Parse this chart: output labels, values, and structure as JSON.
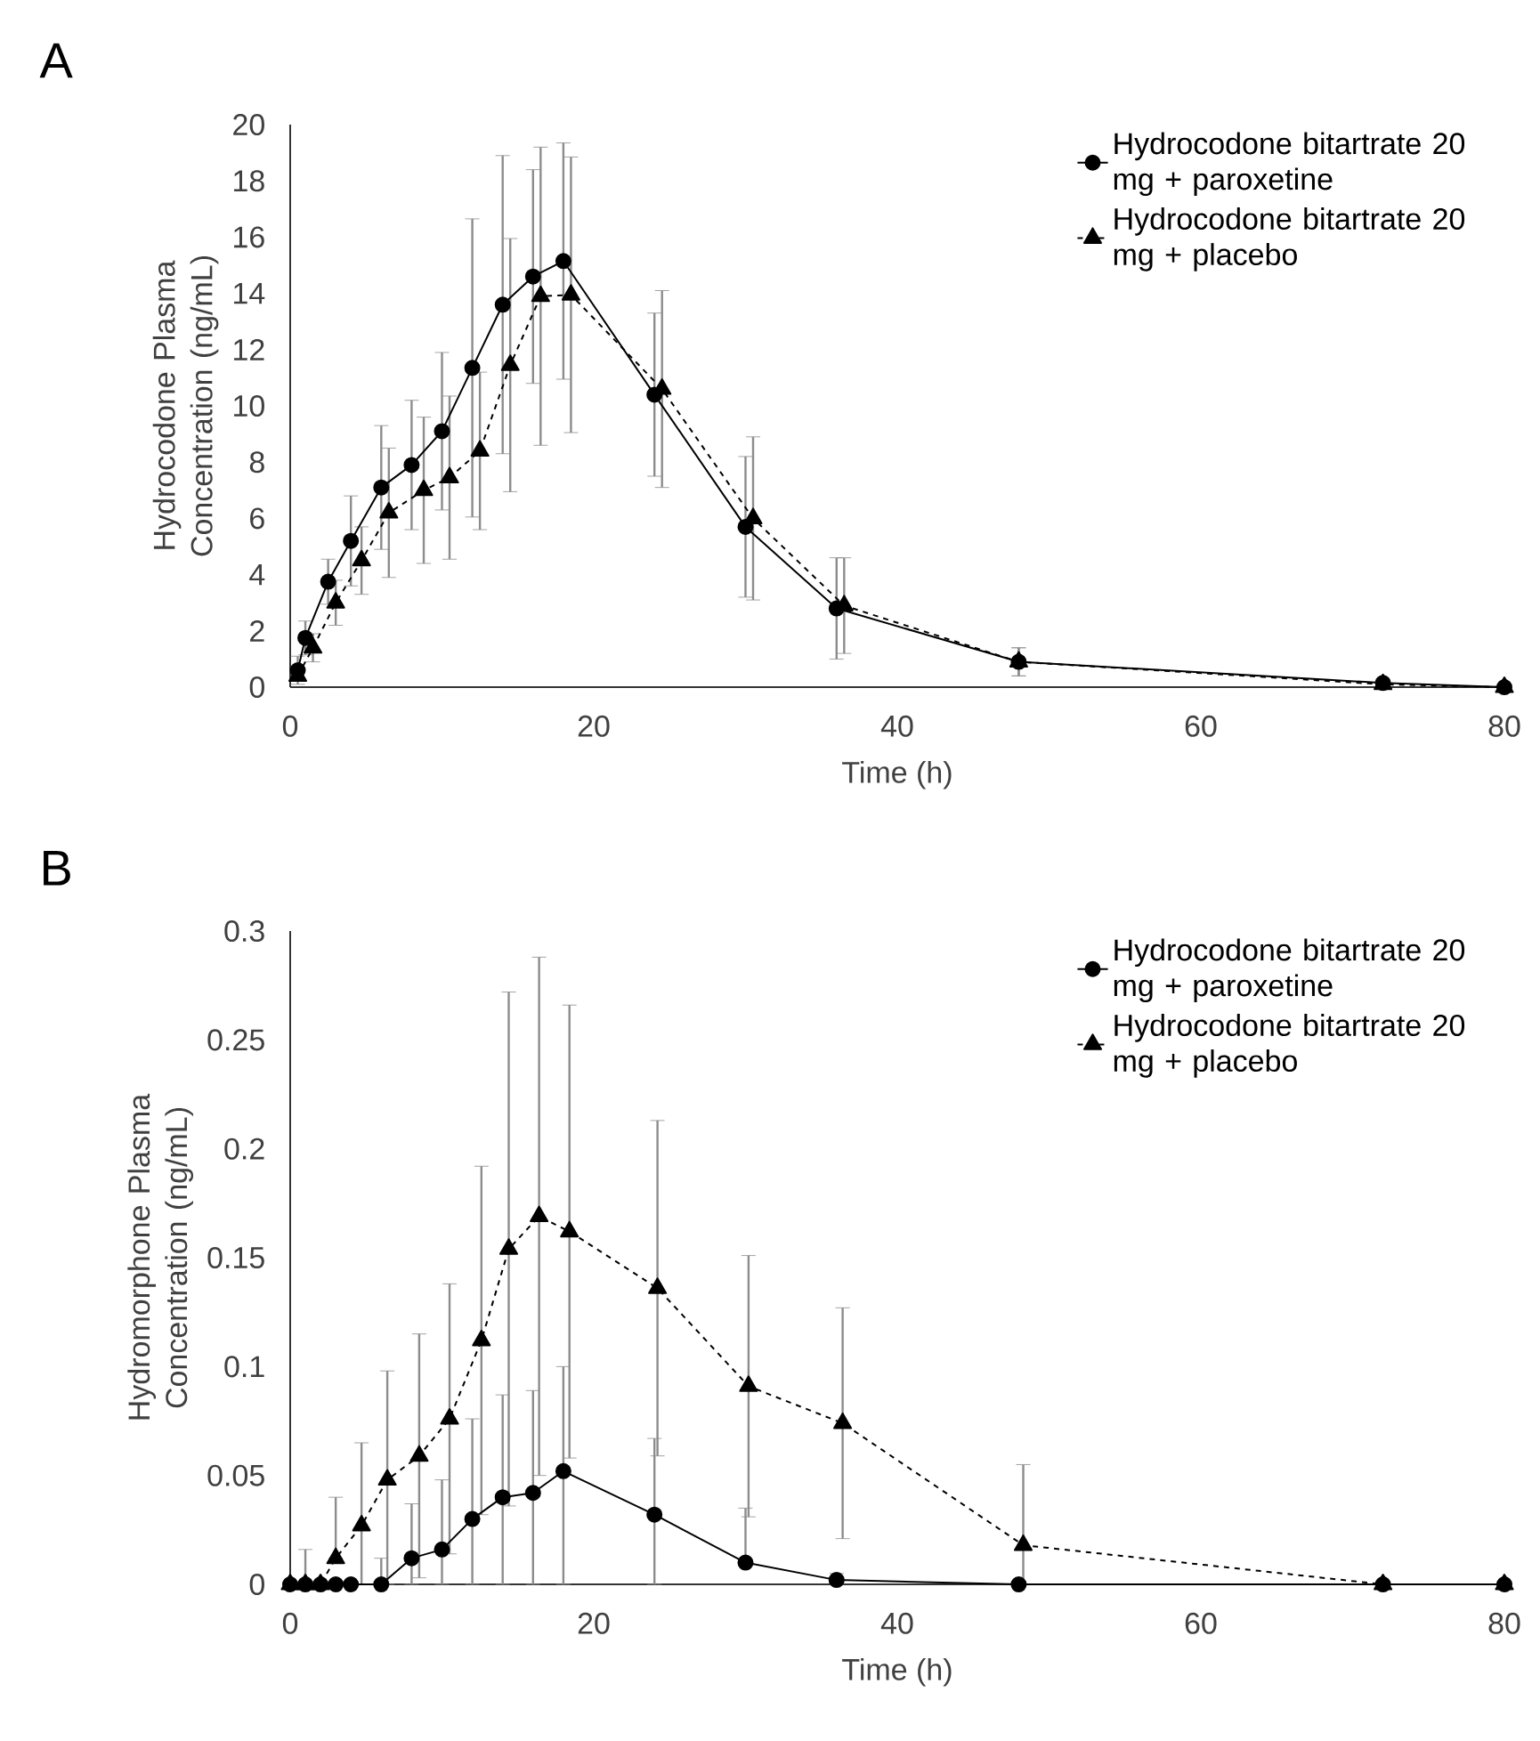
{
  "chart_data": [
    {
      "type": "line",
      "title": "A",
      "xlabel": "Time (h)",
      "ylabel": "Hydrocodone Plasma Concentration (ng/mL)",
      "xlim": [
        0,
        80
      ],
      "ylim": [
        0,
        20
      ],
      "xticks": [
        0,
        20,
        40,
        60,
        80
      ],
      "yticks": [
        0,
        2,
        4,
        6,
        8,
        10,
        12,
        14,
        16,
        18,
        20
      ],
      "legend": "top right",
      "series": [
        {
          "name": "Hydrocodone bitartrate 20 mg + paroxetine",
          "color": "#000000",
          "marker": "circle",
          "line_style": "solid",
          "x": [
            0.5,
            1,
            2.5,
            4,
            6,
            8,
            10,
            12,
            14,
            16,
            18,
            24,
            30,
            36,
            48,
            72,
            80
          ],
          "values": [
            0.6,
            1.75,
            3.75,
            5.2,
            7.1,
            7.9,
            9.1,
            11.35,
            13.6,
            14.6,
            15.15,
            10.4,
            5.7,
            2.8,
            0.9,
            0.15,
            0
          ],
          "errors": [
            0.5,
            0.6,
            0.8,
            1.6,
            2.2,
            2.3,
            2.8,
            5.3,
            5.3,
            3.8,
            4.2,
            2.9,
            2.5,
            1.8,
            0.5,
            null,
            null
          ]
        },
        {
          "name": "Hydrocodone bitartrate 20 mg + placebo",
          "color": "#000000",
          "marker": "triangle",
          "line_style": "dashed",
          "x": [
            0.5,
            1.5,
            3,
            4.7,
            6.5,
            8.8,
            10.5,
            12.5,
            14.5,
            16.5,
            18.5,
            24.5,
            30.5,
            36.5,
            48,
            72,
            80
          ],
          "values": [
            0.4,
            1.4,
            3.0,
            4.5,
            6.2,
            7.0,
            7.45,
            8.4,
            11.45,
            13.9,
            13.95,
            10.6,
            6.0,
            2.9,
            0.9,
            0.1,
            0
          ],
          "errors": [
            null,
            0.5,
            0.8,
            1.2,
            2.3,
            2.6,
            2.9,
            2.8,
            4.5,
            5.3,
            4.9,
            3.5,
            2.9,
            1.7,
            0.5,
            null,
            null
          ]
        }
      ]
    },
    {
      "type": "line",
      "title": "B",
      "xlabel": "Time (h)",
      "ylabel": "Hydromorphone Plasma Concentration (ng/mL)",
      "xlim": [
        0,
        80
      ],
      "ylim": [
        0,
        0.3
      ],
      "xticks": [
        0,
        20,
        40,
        60,
        80
      ],
      "yticks": [
        0,
        0.05,
        0.1,
        0.15,
        0.2,
        0.25,
        0.3
      ],
      "legend": "top right",
      "series": [
        {
          "name": "Hydrocodone bitartrate 20 mg + paroxetine",
          "color": "#000000",
          "marker": "circle",
          "line_style": "solid",
          "x": [
            0,
            1,
            2,
            3,
            4,
            6,
            8,
            10,
            12,
            14,
            16,
            18,
            24,
            30,
            36,
            48,
            72,
            80
          ],
          "values": [
            0,
            0,
            0,
            0,
            0,
            0,
            0.012,
            0.016,
            0.03,
            0.04,
            0.042,
            0.052,
            0.032,
            0.01,
            0.002,
            0,
            0,
            0
          ],
          "errors": [
            null,
            [
              0,
              0.016
            ],
            null,
            null,
            null,
            [
              0,
              0.012
            ],
            [
              0,
              0.037
            ],
            [
              0,
              0.048
            ],
            [
              0,
              0.076
            ],
            [
              0,
              0.087
            ],
            [
              0,
              0.089
            ],
            [
              0,
              0.1
            ],
            [
              0,
              0.067
            ],
            [
              0.01,
              0.035
            ],
            [
              0,
              0.005
            ],
            null,
            null,
            null
          ]
        },
        {
          "name": "Hydrocodone bitartrate 20 mg + placebo",
          "color": "#000000",
          "marker": "triangle",
          "line_style": "dashed",
          "x": [
            0,
            1,
            2,
            3,
            4.7,
            6.4,
            8.5,
            10.5,
            12.6,
            14.4,
            16.4,
            18.4,
            24.2,
            30.2,
            36.4,
            48.3,
            72,
            80
          ],
          "values": [
            0,
            0,
            0,
            0.012,
            0.027,
            0.048,
            0.059,
            0.076,
            0.112,
            0.154,
            0.169,
            0.162,
            0.136,
            0.091,
            0.074,
            0.018,
            0,
            0
          ],
          "errors": [
            null,
            null,
            null,
            [
              0.012,
              0.04
            ],
            [
              0,
              0.065
            ],
            [
              0,
              0.098
            ],
            0.056,
            0.062,
            0.08,
            0.118,
            0.119,
            0.104,
            0.077,
            0.06,
            0.053,
            [
              0,
              0.055
            ],
            null,
            null
          ]
        }
      ]
    }
  ]
}
